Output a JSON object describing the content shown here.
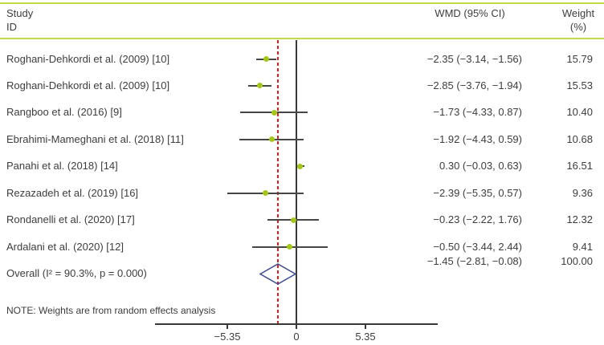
{
  "header": {
    "study_col_line1": "Study",
    "study_col_line2": "ID",
    "wmd_col": "WMD (95% CI)",
    "weight_col_line1": "Weight",
    "weight_col_line2": "(%)"
  },
  "note": "NOTE: Weights are from random effects analysis",
  "colors": {
    "rule_green": "#c5d945",
    "marker_green": "#a3c716",
    "ci_line": "#474747",
    "diamond_stroke": "#3c4a93",
    "ref_line_red": "#e41b17",
    "axis_black": "#383838",
    "text": "#3d3d3d"
  },
  "chart_data": {
    "type": "forest",
    "xlabel": "",
    "x_ticks": [
      -5.35,
      0,
      5.35
    ],
    "x_tick_labels": [
      "−5.35",
      "0",
      "5.35"
    ],
    "zero_line": 0,
    "ref_line": -1.45,
    "studies": [
      {
        "label": "Roghani-Dehkordi et al. (2009) [10]",
        "wmd": -2.35,
        "ci_low": -3.14,
        "ci_high": -1.56,
        "weight": 15.79,
        "wmd_text": "−2.35 (−3.14, −1.56)",
        "weight_text": "15.79"
      },
      {
        "label": "Roghani-Dehkordi et al. (2009) [10]",
        "wmd": -2.85,
        "ci_low": -3.76,
        "ci_high": -1.94,
        "weight": 15.53,
        "wmd_text": "−2.85 (−3.76, −1.94)",
        "weight_text": "15.53"
      },
      {
        "label": "Rangboo et al. (2016) [9]",
        "wmd": -1.73,
        "ci_low": -4.33,
        "ci_high": 0.87,
        "weight": 10.4,
        "wmd_text": "−1.73 (−4.33, 0.87)",
        "weight_text": "10.40"
      },
      {
        "label": "Ebrahimi-Mameghani et al. (2018) [11]",
        "wmd": -1.92,
        "ci_low": -4.43,
        "ci_high": 0.59,
        "weight": 10.68,
        "wmd_text": "−1.92 (−4.43, 0.59)",
        "weight_text": "10.68"
      },
      {
        "label": "Panahi et al. (2018) [14]",
        "wmd": 0.3,
        "ci_low": -0.03,
        "ci_high": 0.63,
        "weight": 16.51,
        "wmd_text": "0.30 (−0.03, 0.63)",
        "weight_text": "16.51"
      },
      {
        "label": "Rezazadeh et al. (2019) [16]",
        "wmd": -2.39,
        "ci_low": -5.35,
        "ci_high": 0.57,
        "weight": 9.36,
        "wmd_text": "−2.39 (−5.35, 0.57)",
        "weight_text": "9.36"
      },
      {
        "label": "Rondanelli et al. (2020) [17]",
        "wmd": -0.23,
        "ci_low": -2.22,
        "ci_high": 1.76,
        "weight": 12.32,
        "wmd_text": "−0.23 (−2.22, 1.76)",
        "weight_text": "12.32"
      },
      {
        "label": "Ardalani et al. (2020) [12]",
        "wmd": -0.5,
        "ci_low": -3.44,
        "ci_high": 2.44,
        "weight": 9.41,
        "wmd_text": "−0.50 (−3.44, 2.44)",
        "weight_text": "9.41"
      }
    ],
    "overall": {
      "label": "Overall (I² = 90.3%, p = 0.000)",
      "wmd": -1.45,
      "ci_low": -2.81,
      "ci_high": -0.08,
      "wmd_text": "−1.45 (−2.81, −0.08)",
      "weight_text": "100.00"
    }
  }
}
